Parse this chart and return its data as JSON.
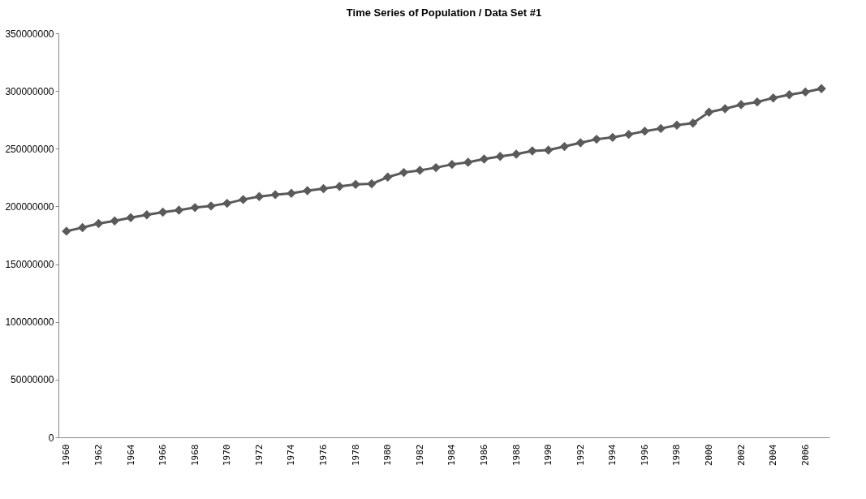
{
  "chart_data": {
    "type": "line",
    "title": "Time Series of Population / Data Set #1",
    "categories": [
      "1960",
      null,
      "1962",
      null,
      "1964",
      null,
      "1966",
      null,
      "1968",
      null,
      "1970",
      null,
      "1972",
      null,
      "1974",
      null,
      "1976",
      null,
      "1978",
      null,
      "1980",
      null,
      "1982",
      null,
      "1984",
      null,
      "1986",
      null,
      "1988",
      null,
      "1990",
      null,
      "1992",
      null,
      "1994",
      null,
      "1996",
      null,
      "1998",
      null,
      "2000",
      null,
      "2002",
      null,
      "2004",
      null,
      "2006",
      null
    ],
    "series": [
      {
        "color": "#5a5a5a",
        "values": [
          178600000,
          181700000,
          185200000,
          187500000,
          190300000,
          192700000,
          195000000,
          196800000,
          199000000,
          200400000,
          202700000,
          206000000,
          208600000,
          210200000,
          211400000,
          213700000,
          215400000,
          217300000,
          219100000,
          219600000,
          225400000,
          229400000,
          231300000,
          233600000,
          236400000,
          238300000,
          241100000,
          243400000,
          245300000,
          248100000,
          248800000,
          251900000,
          255100000,
          258200000,
          259800000,
          262400000,
          265200000,
          267500000,
          270400000,
          272200000,
          281600000,
          284600000,
          288100000,
          290500000,
          294000000,
          296800000,
          299100000,
          302000000
        ]
      }
    ],
    "ylim": [
      0,
      350000000
    ],
    "yticks": [
      0,
      50000000,
      100000000,
      150000000,
      200000000,
      250000000,
      300000000,
      350000000
    ],
    "grid": false,
    "legend": false,
    "marker": "diamond",
    "line_style": "solid"
  }
}
